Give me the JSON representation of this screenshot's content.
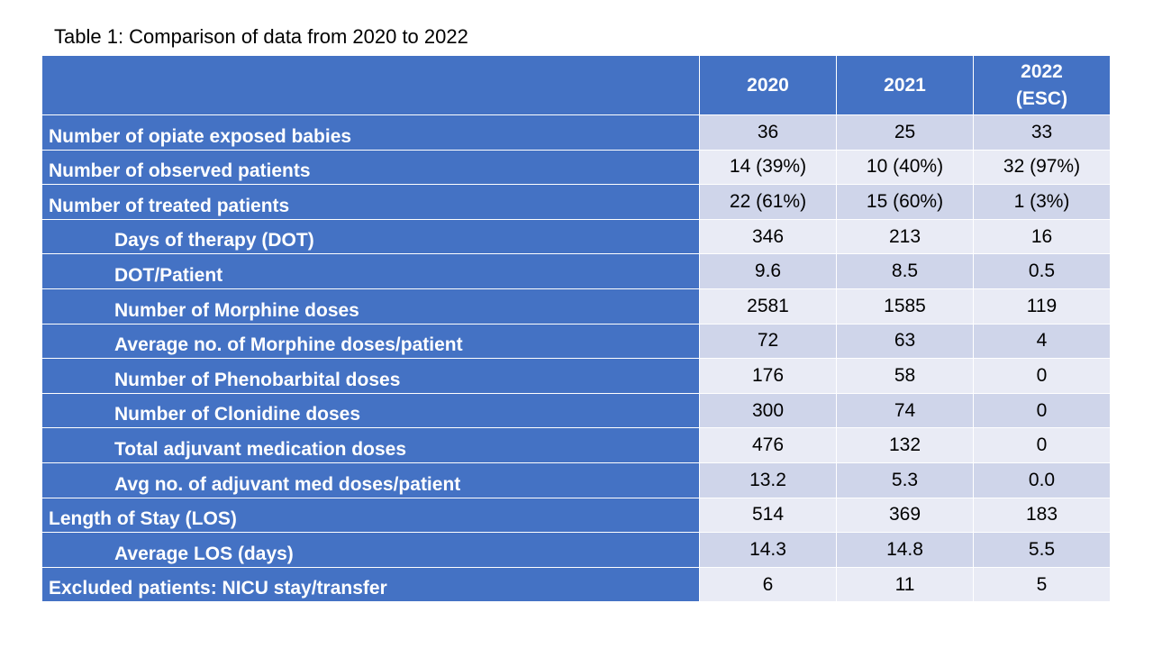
{
  "caption": "Table 1: Comparison of data from 2020 to 2022",
  "table": {
    "header": {
      "corner": "",
      "col_2020": "2020",
      "col_2021": "2021",
      "col_2022_line1": "2022",
      "col_2022_line2": "(ESC)"
    },
    "rows": [
      {
        "label": "Number of opiate exposed babies",
        "indent": false,
        "v2020": "36",
        "v2021": "25",
        "v2022": "33"
      },
      {
        "label": "Number of observed patients",
        "indent": false,
        "v2020": "14 (39%)",
        "v2021": "10 (40%)",
        "v2022": "32 (97%)"
      },
      {
        "label": "Number of treated patients",
        "indent": false,
        "v2020": "22 (61%)",
        "v2021": "15 (60%)",
        "v2022": "1 (3%)"
      },
      {
        "label": "Days of therapy (DOT)",
        "indent": true,
        "v2020": "346",
        "v2021": "213",
        "v2022": "16"
      },
      {
        "label": "DOT/Patient",
        "indent": true,
        "v2020": "9.6",
        "v2021": "8.5",
        "v2022": "0.5"
      },
      {
        "label": "Number of Morphine doses",
        "indent": true,
        "v2020": "2581",
        "v2021": "1585",
        "v2022": "119"
      },
      {
        "label": "Average no. of Morphine doses/patient",
        "indent": true,
        "v2020": "72",
        "v2021": "63",
        "v2022": "4"
      },
      {
        "label": "Number of Phenobarbital doses",
        "indent": true,
        "v2020": "176",
        "v2021": "58",
        "v2022": "0"
      },
      {
        "label": "Number of Clonidine doses",
        "indent": true,
        "v2020": "300",
        "v2021": "74",
        "v2022": "0"
      },
      {
        "label": "Total adjuvant medication doses",
        "indent": true,
        "v2020": "476",
        "v2021": "132",
        "v2022": "0"
      },
      {
        "label": "Avg no. of adjuvant med doses/patient",
        "indent": true,
        "v2020": "13.2",
        "v2021": "5.3",
        "v2022": "0.0"
      },
      {
        "label": "Length of Stay (LOS)",
        "indent": false,
        "v2020": "514",
        "v2021": "369",
        "v2022": "183"
      },
      {
        "label": "Average LOS (days)",
        "indent": true,
        "v2020": "14.3",
        "v2021": "14.8",
        "v2022": "5.5"
      },
      {
        "label": "Excluded patients: NICU stay/transfer",
        "indent": false,
        "v2020": "6",
        "v2021": "11",
        "v2022": "5"
      }
    ]
  }
}
